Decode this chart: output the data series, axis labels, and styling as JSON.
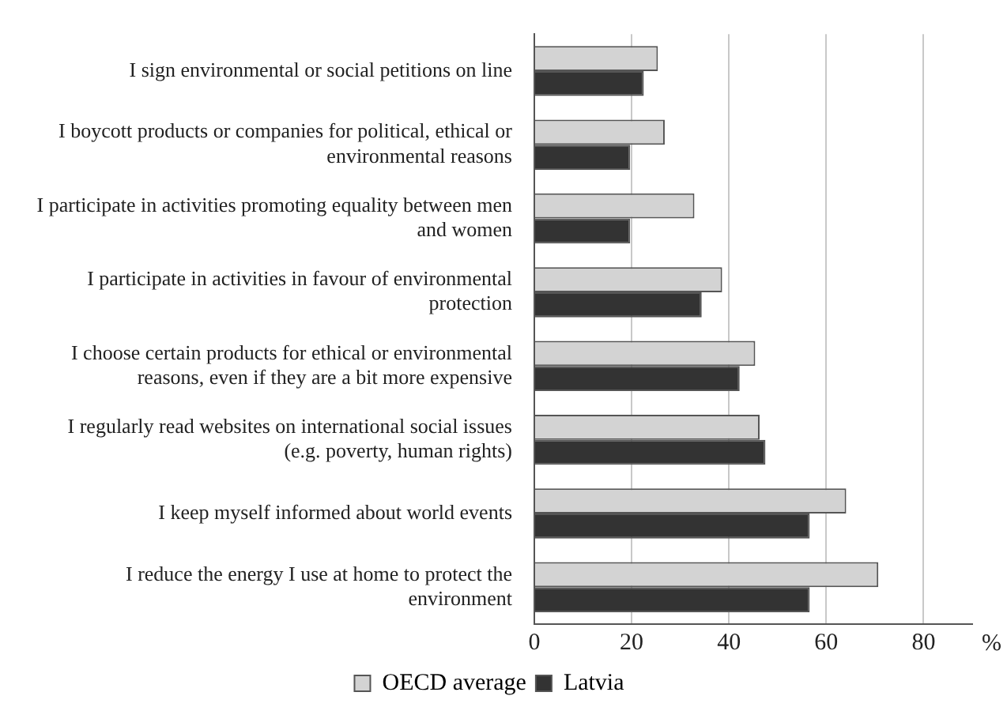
{
  "chart_data": {
    "type": "bar",
    "orientation": "horizontal",
    "categories": [
      "I sign environmental or social petitions on line",
      "I boycott products or companies for political, ethical or environmental reasons",
      "I participate in activities promoting equality between men and women",
      "I participate in activities in favour of environmental protection",
      "I choose certain products for ethical or environmental reasons, even if they are a bit more expensive",
      "I regularly read websites on international social issues (e.g. poverty, human rights)",
      "I keep myself informed about world events",
      "I reduce the energy I use at home to protect the environment"
    ],
    "series": [
      {
        "name": "OECD average",
        "color": "#d3d3d3",
        "values": [
          25.4,
          26.8,
          32.9,
          38.6,
          45.4,
          46.3,
          64.1,
          70.7
        ]
      },
      {
        "name": "Latvia",
        "color": "#333333",
        "values": [
          22.5,
          19.7,
          19.7,
          34.4,
          42.2,
          47.5,
          56.6,
          56.6
        ]
      }
    ],
    "xlabel": "%",
    "xlim": [
      0,
      90
    ],
    "xticks": [
      0,
      20,
      40,
      60,
      80
    ],
    "grid": "x",
    "legend": "bottom"
  }
}
